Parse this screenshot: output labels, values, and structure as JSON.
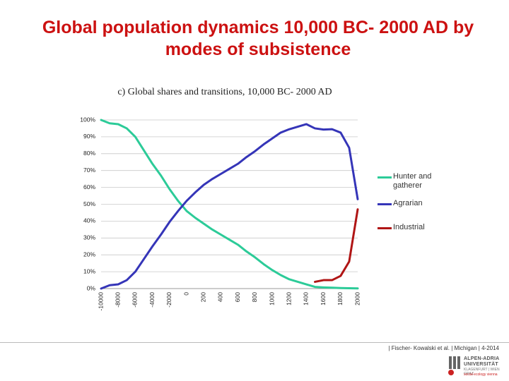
{
  "chart_data": {
    "type": "line",
    "title": "Global population dynamics 10,000 BC- 2000 AD by modes of subsistence",
    "subtitle": "c) Global shares and transitions, 10,000  BC- 2000 AD",
    "categories": [
      "-10000",
      null,
      "-8000",
      null,
      "-6000",
      null,
      "-4000",
      null,
      "-2000",
      null,
      "0",
      null,
      "200",
      null,
      "400",
      null,
      "600",
      null,
      "800",
      null,
      "1000",
      null,
      "1200",
      null,
      "1400",
      null,
      "1600",
      null,
      "1800",
      null,
      "2000"
    ],
    "series": [
      {
        "name": "Hunter and gatherer",
        "color": "#2ccb98",
        "values": [
          100,
          98,
          97.5,
          95,
          90,
          82,
          74,
          67,
          59,
          52,
          46,
          42,
          38.5,
          35,
          32,
          29,
          26,
          22,
          18.5,
          14.5,
          11,
          8,
          5.5,
          4,
          2.5,
          1,
          0.7,
          0.5,
          0.3,
          0.2,
          0.1
        ]
      },
      {
        "name": "Agrarian",
        "color": "#3535b8",
        "values": [
          0,
          2,
          2.5,
          5,
          10,
          17.5,
          25,
          32,
          39.5,
          46,
          52,
          57,
          61.5,
          65,
          68,
          71,
          74,
          78,
          81.5,
          85.5,
          89,
          92.5,
          94.5,
          96,
          97.5,
          95,
          94.3,
          94.5,
          92.5,
          83.5,
          53
        ]
      },
      {
        "name": "Industrial",
        "color": "#b01515",
        "values": [
          null,
          null,
          null,
          null,
          null,
          null,
          null,
          null,
          null,
          null,
          null,
          null,
          null,
          null,
          null,
          null,
          null,
          null,
          null,
          null,
          null,
          null,
          null,
          null,
          null,
          4,
          5,
          5,
          7.5,
          16,
          47
        ]
      }
    ],
    "ylim": [
      0,
      100
    ],
    "yticks": [
      {
        "value": 0,
        "label": "0%"
      },
      {
        "value": 10,
        "label": "10%"
      },
      {
        "value": 20,
        "label": "20%"
      },
      {
        "value": 30,
        "label": "30%"
      },
      {
        "value": 40,
        "label": "40%"
      },
      {
        "value": 50,
        "label": "50%"
      },
      {
        "value": 60,
        "label": "60%"
      },
      {
        "value": 70,
        "label": "70%"
      },
      {
        "value": 80,
        "label": "80%"
      },
      {
        "value": 90,
        "label": "90%"
      },
      {
        "value": 100,
        "label": "100%"
      }
    ],
    "grid": true,
    "legend": "right"
  },
  "footer": {
    "citation": "| Fischer- Kowalski et al. | Michigan | 4-2014",
    "logo_line1": "ALPEN-ADRIA",
    "logo_line2": "UNIVERSITÄT",
    "logo_line3": "KLAGENFURT | WIEN GRAZ",
    "logo_line4": "social ecology vienna"
  }
}
